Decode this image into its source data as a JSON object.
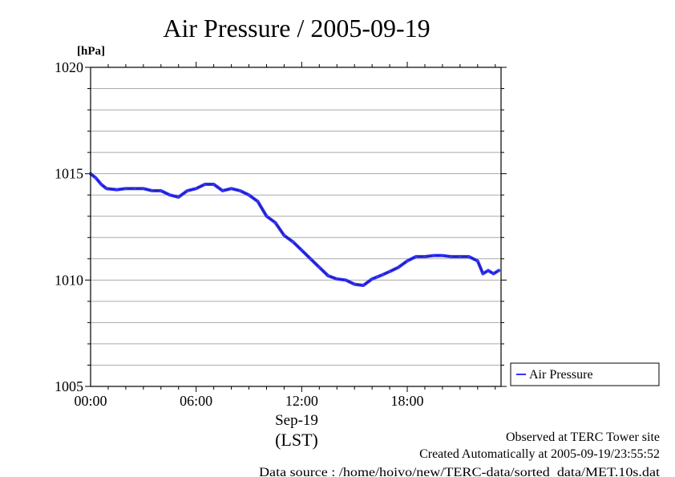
{
  "chart_data": {
    "type": "line",
    "title": "Air Pressure / 2005-09-19",
    "ylabel": "[hPa]",
    "xlabel_date": "Sep-19",
    "xlabel_unit": "(LST)",
    "ylim": [
      1005,
      1020
    ],
    "xlim": [
      0,
      23.33
    ],
    "y_ticks": [
      1005,
      1010,
      1015,
      1020
    ],
    "y_tick_labels": [
      "1005",
      "1010",
      "1015",
      "1020"
    ],
    "x_ticks": [
      0,
      6,
      12,
      18
    ],
    "x_tick_labels": [
      "00:00",
      "06:00",
      "12:00",
      "18:00"
    ],
    "grid": true,
    "legend_position": "right",
    "series_color": "#3333ff",
    "series": [
      {
        "name": "Air Pressure",
        "x": [
          0,
          0.3,
          0.6,
          0.9,
          1.5,
          2.0,
          2.5,
          3.0,
          3.5,
          4.0,
          4.5,
          5.0,
          5.5,
          6.0,
          6.5,
          7.0,
          7.5,
          8.0,
          8.5,
          9.0,
          9.5,
          10.0,
          10.5,
          11.0,
          11.5,
          12.0,
          12.5,
          13.0,
          13.5,
          14.0,
          14.5,
          15.0,
          15.5,
          16.0,
          16.3,
          16.6,
          17.0,
          17.5,
          18.0,
          18.5,
          19.0,
          19.5,
          20.0,
          20.5,
          21.0,
          21.5,
          22.0,
          22.3,
          22.6,
          22.9,
          23.2
        ],
        "values": [
          1015.0,
          1014.8,
          1014.5,
          1014.3,
          1014.25,
          1014.3,
          1014.3,
          1014.3,
          1014.2,
          1014.2,
          1014.0,
          1013.9,
          1014.2,
          1014.3,
          1014.5,
          1014.5,
          1014.2,
          1014.3,
          1014.2,
          1014.0,
          1013.7,
          1013.0,
          1012.7,
          1012.1,
          1011.8,
          1011.4,
          1011.0,
          1010.6,
          1010.2,
          1010.05,
          1010.0,
          1009.8,
          1009.75,
          1010.05,
          1010.15,
          1010.25,
          1010.4,
          1010.6,
          1010.9,
          1011.1,
          1011.1,
          1011.15,
          1011.15,
          1011.1,
          1011.1,
          1011.1,
          1010.9,
          1010.3,
          1010.45,
          1010.3,
          1010.45
        ]
      }
    ]
  },
  "footer": {
    "observed": "Observed at TERC Tower site",
    "created": "Created Automatically at 2005-09-19/23:55:52",
    "source": "Data source : /home/hoivo/new/TERC-data/sorted_data/MET.10s.dat"
  }
}
